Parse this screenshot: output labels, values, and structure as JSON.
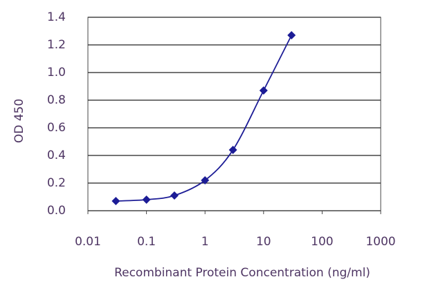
{
  "chart_data": {
    "type": "line",
    "x_label": "Recombinant Protein Concentration  (ng/ml)",
    "y_label": "OD 450",
    "x": [
      0.03,
      0.1,
      0.3,
      1,
      3,
      10,
      30
    ],
    "series": [
      {
        "color": "#1c1c96",
        "values": [
          0.07,
          0.08,
          0.11,
          0.22,
          0.44,
          0.87,
          1.27
        ]
      }
    ],
    "xscale": "log",
    "xlim": [
      0.01,
      1000
    ],
    "xticks": [
      0.01,
      0.1,
      1,
      10,
      100,
      1000
    ],
    "ylim": [
      0,
      1.4
    ],
    "yticks": [
      {
        "value": 0,
        "label": "0.0"
      },
      0.2,
      0.4,
      0.6,
      0.8,
      {
        "value": 1,
        "label": "1.0"
      },
      1.2,
      1.4
    ],
    "grid": true
  }
}
